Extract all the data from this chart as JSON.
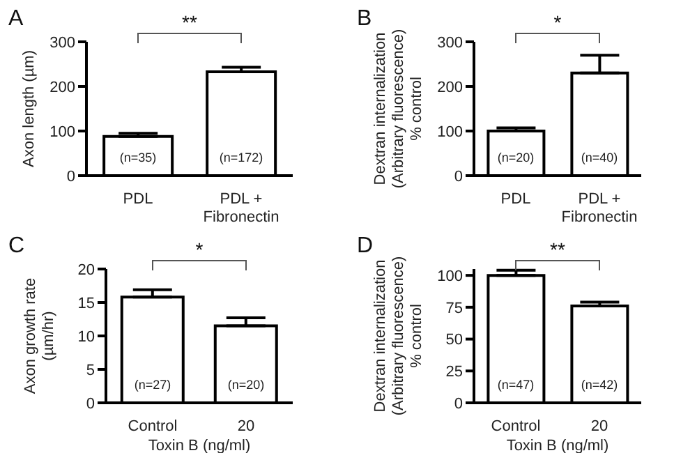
{
  "chart_data": [
    {
      "type": "bar",
      "title": "A",
      "ylabel": "Axon length (µm)",
      "categories": [
        "PDL",
        "PDL +\nFibronectin"
      ],
      "values": [
        88,
        233
      ],
      "color": "#ffffff",
      "errors": [
        [
          88,
          95
        ],
        [
          233,
          243
        ]
      ],
      "ylim": [
        0,
        300
      ],
      "yticks": [
        0,
        100,
        200,
        300
      ],
      "annotations": [
        "**",
        "(n=35)",
        "(n=172)"
      ]
    },
    {
      "type": "bar",
      "title": "B",
      "ylabel": "Dextran internalization\n(Arbitrary fluorescence)\n% control",
      "categories": [
        "PDL",
        "PDL +\nFibronectin"
      ],
      "values": [
        100,
        230
      ],
      "color": "#ffffff",
      "errors": [
        [
          100,
          107
        ],
        [
          230,
          270
        ]
      ],
      "ylim": [
        0,
        300
      ],
      "yticks": [
        0,
        100,
        200,
        300
      ],
      "annotations": [
        "*",
        "(n=20)",
        "(n=40)"
      ]
    },
    {
      "type": "bar",
      "title": "C",
      "ylabel": "Axon growth rate\n(µm/hr)",
      "xlabel": "Toxin B (ng/ml)",
      "categories": [
        "Control",
        "20"
      ],
      "values": [
        15.8,
        11.5
      ],
      "color": "#ffffff",
      "errors": [
        [
          15.8,
          16.9
        ],
        [
          11.5,
          12.7
        ]
      ],
      "ylim": [
        0,
        20
      ],
      "yticks": [
        0,
        5,
        10,
        15,
        20
      ],
      "annotations": [
        "*",
        "(n=27)",
        "(n=20)"
      ]
    },
    {
      "type": "bar",
      "title": "D",
      "ylabel": "Dextran internalization\n(Arbitrary fluorescence)\n% control",
      "xlabel": "Toxin B (ng/ml)",
      "categories": [
        "Control",
        "20"
      ],
      "values": [
        100,
        76
      ],
      "color": "#ffffff",
      "errors": [
        [
          100,
          104
        ],
        [
          76,
          79
        ]
      ],
      "ylim": [
        0,
        105
      ],
      "yticks": [
        0,
        25,
        50,
        75,
        100
      ],
      "annotations": [
        "**",
        "(n=47)",
        "(n=42)"
      ]
    }
  ]
}
